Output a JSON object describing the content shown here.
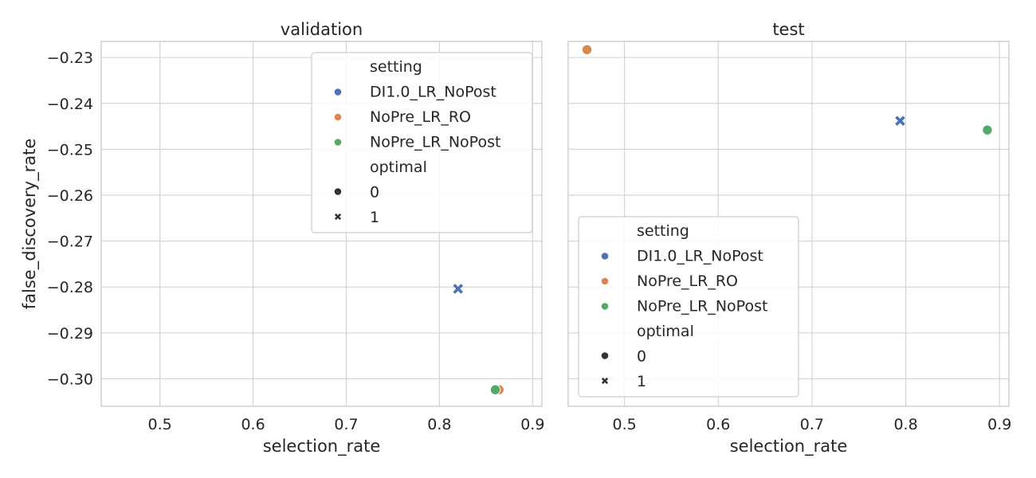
{
  "chart_data": {
    "type": "scatter",
    "ylabel": "false_discovery_rate",
    "ylim": [
      -0.306,
      -0.2265
    ],
    "yticks": [
      -0.23,
      -0.24,
      -0.25,
      -0.26,
      -0.27,
      -0.28,
      -0.29,
      -0.3
    ],
    "ytick_labels": [
      "−0.23",
      "−0.24",
      "−0.25",
      "−0.26",
      "−0.27",
      "−0.28",
      "−0.29",
      "−0.30"
    ],
    "grid": true,
    "colors": {
      "DI1.0_LR_NoPost": "#4c72b0",
      "NoPre_LR_RO": "#dd8452",
      "NoPre_LR_NoPost": "#55a868"
    },
    "panels": [
      {
        "title": "validation",
        "xlabel": "selection_rate",
        "xlim": [
          0.437,
          0.91
        ],
        "xticks": [
          0.5,
          0.6,
          0.7,
          0.8,
          0.9
        ],
        "xtick_labels": [
          "0.5",
          "0.6",
          "0.7",
          "0.8",
          "0.9"
        ],
        "legend_position": "top-right",
        "points": [
          {
            "setting": "DI1.0_LR_NoPost",
            "optimal": 1,
            "x": 0.82,
            "y": -0.2804
          },
          {
            "setting": "NoPre_LR_RO",
            "optimal": 0,
            "x": 0.864,
            "y": -0.3024
          },
          {
            "setting": "NoPre_LR_NoPost",
            "optimal": 0,
            "x": 0.86,
            "y": -0.3024
          }
        ]
      },
      {
        "title": "test",
        "xlabel": "selection_rate",
        "xlim": [
          0.44,
          0.91
        ],
        "xticks": [
          0.5,
          0.6,
          0.7,
          0.8,
          0.9
        ],
        "xtick_labels": [
          "0.5",
          "0.6",
          "0.7",
          "0.8",
          "0.9"
        ],
        "legend_position": "lower-left",
        "points": [
          {
            "setting": "NoPre_LR_RO",
            "optimal": 0,
            "x": 0.46,
            "y": -0.2283
          },
          {
            "setting": "DI1.0_LR_NoPost",
            "optimal": 1,
            "x": 0.794,
            "y": -0.2438
          },
          {
            "setting": "NoPre_LR_NoPost",
            "optimal": 0,
            "x": 0.887,
            "y": -0.2458
          }
        ]
      }
    ],
    "legend": {
      "hue_title": "setting",
      "hue_entries": [
        "DI1.0_LR_NoPost",
        "NoPre_LR_RO",
        "NoPre_LR_NoPost"
      ],
      "style_title": "optimal",
      "style_entries": [
        "0",
        "1"
      ]
    }
  }
}
